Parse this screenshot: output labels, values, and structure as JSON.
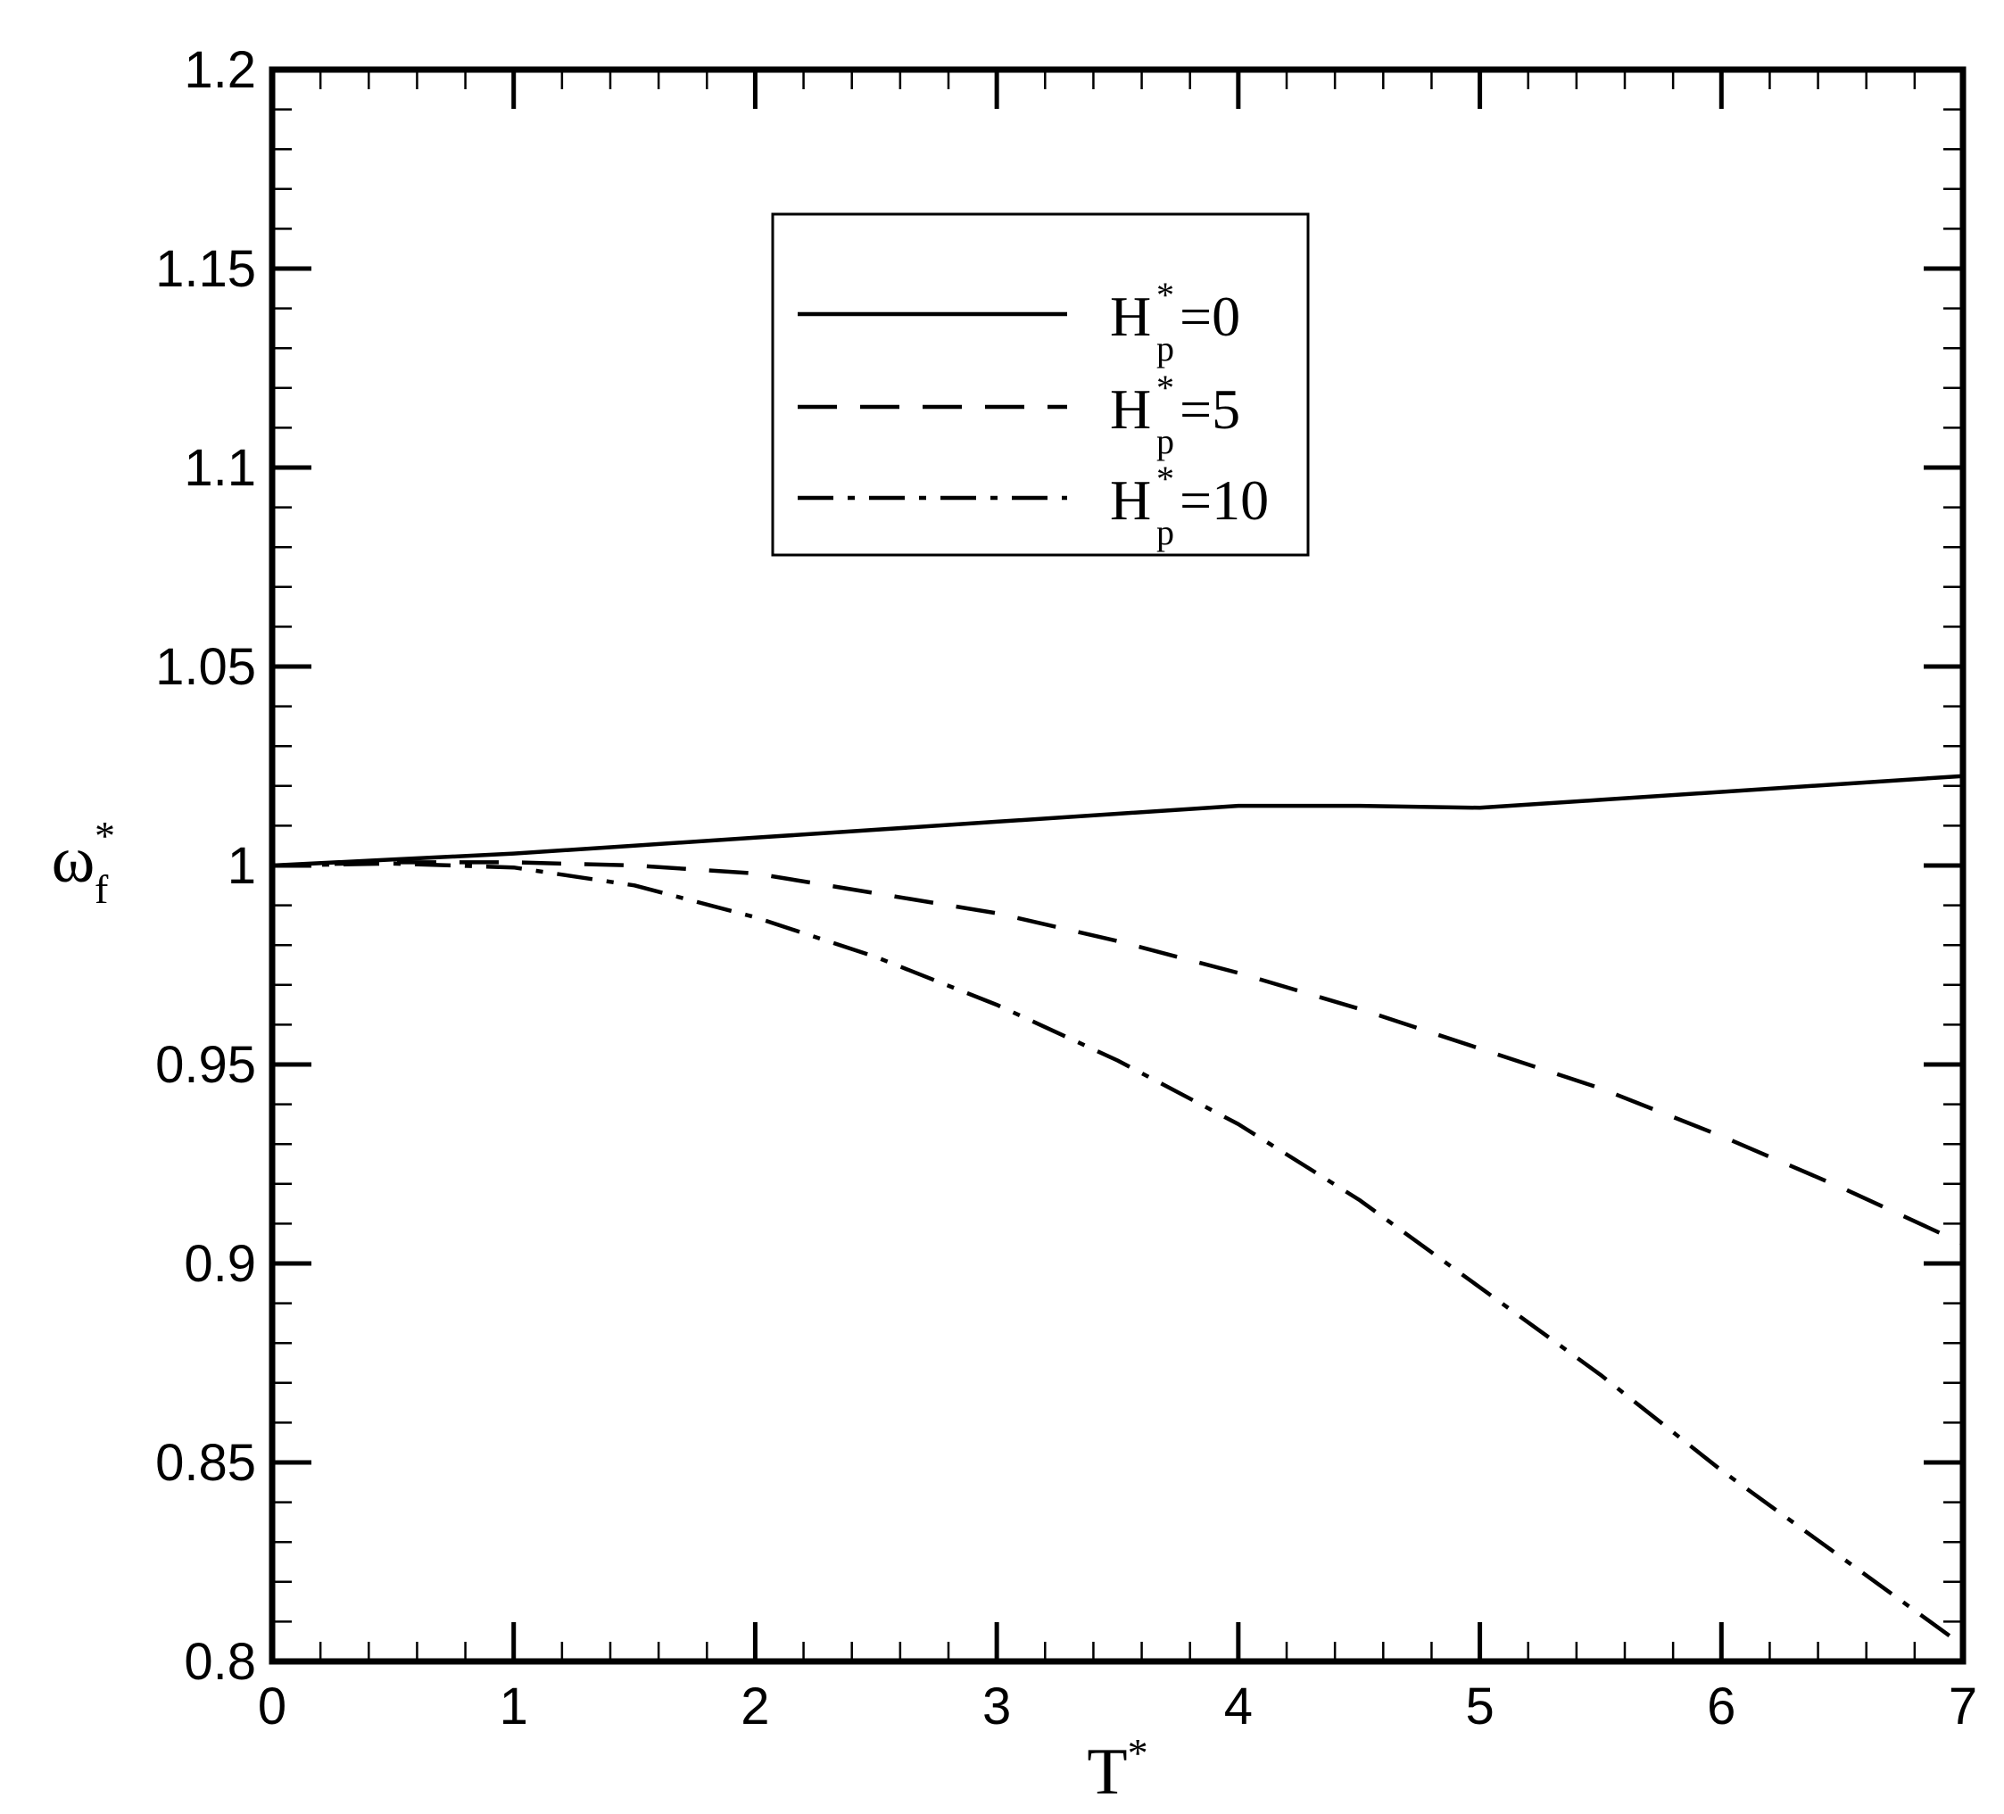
{
  "chart_data": {
    "type": "line",
    "title": "",
    "xlabel": {
      "base": "T",
      "sup": "*"
    },
    "ylabel": {
      "base": "ω",
      "sup": "*",
      "sub": "f"
    },
    "xlim": [
      0,
      7
    ],
    "ylim": [
      0.8,
      1.2
    ],
    "xticks": [
      0,
      1,
      2,
      3,
      4,
      5,
      6,
      7
    ],
    "xtick_labels": [
      "0",
      "1",
      "2",
      "3",
      "4",
      "5",
      "6",
      "7"
    ],
    "yticks": [
      0.8,
      0.85,
      0.9,
      0.95,
      1.0,
      1.05,
      1.1,
      1.15,
      1.2
    ],
    "ytick_labels": [
      "0.8",
      "0.85",
      "0.9",
      "0.95",
      "1",
      "1.05",
      "1.1",
      "1.15",
      "1.2"
    ],
    "grid": false,
    "legend_position": "top-center",
    "series": [
      {
        "label_base": "H",
        "label_sup": "*",
        "label_sub": "p",
        "label_rest": "=0",
        "line_style": "solid",
        "x": [
          0,
          0.5,
          1,
          1.5,
          2,
          2.5,
          3,
          3.5,
          4,
          4.5,
          5,
          5.5,
          6,
          6.5,
          7
        ],
        "y": [
          1.0,
          1.0015,
          1.003,
          1.005,
          1.007,
          1.009,
          1.011,
          1.013,
          1.015,
          1.015,
          1.0145,
          1.0165,
          1.0185,
          1.0205,
          1.0225
        ]
      },
      {
        "label_base": "H",
        "label_sup": "*",
        "label_sub": "p",
        "label_rest": "=5",
        "line_style": "dashed",
        "x": [
          0,
          0.5,
          1,
          1.5,
          2,
          2.5,
          3,
          3.5,
          4,
          4.5,
          5,
          5.5,
          6,
          6.5,
          7
        ],
        "y": [
          1.0,
          1.0008,
          1.0008,
          1.0,
          0.998,
          0.993,
          0.988,
          0.981,
          0.973,
          0.964,
          0.954,
          0.944,
          0.932,
          0.919,
          0.905
        ]
      },
      {
        "label_base": "H",
        "label_sup": "*",
        "label_sub": "p",
        "label_rest": "=10",
        "line_style": "dashdot",
        "x": [
          0,
          0.5,
          1,
          1.5,
          2,
          2.5,
          3,
          3.5,
          4,
          4.5,
          5,
          5.5,
          6,
          6.5,
          7
        ],
        "y": [
          1.0,
          1.0005,
          0.9995,
          0.995,
          0.987,
          0.977,
          0.965,
          0.951,
          0.935,
          0.916,
          0.894,
          0.872,
          0.848,
          0.826,
          0.804
        ]
      }
    ]
  }
}
